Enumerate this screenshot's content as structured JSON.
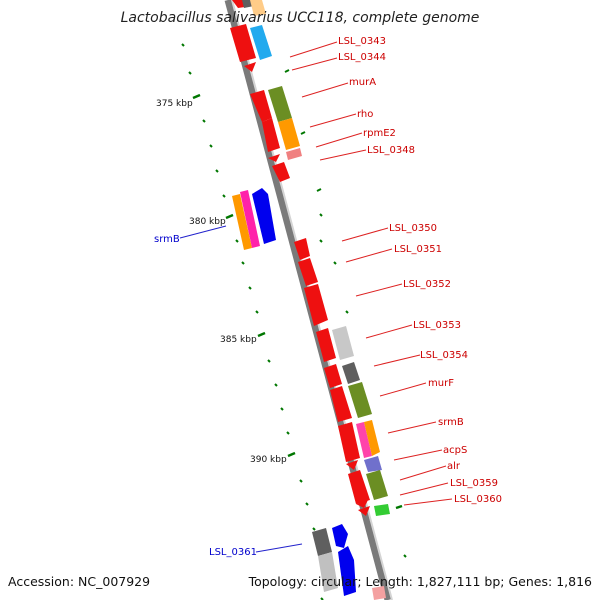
{
  "title": "Lactobacillus salivarius UCC118, complete genome",
  "footer": {
    "accession_label": "Accession:",
    "accession": "NC_007929",
    "topology_label": "Topology:",
    "topology": "circular;",
    "length_label": "Length:",
    "length": "1,827,111 bp;",
    "genes_label": "Genes:",
    "genes": "1,816"
  },
  "colors": {
    "forward_gene": "#ee0000",
    "reverse_gene": "#0000ee",
    "forward_label": "#cc0000",
    "reverse_label": "#0000cc",
    "backbone": "#808080",
    "tick": "#007700"
  },
  "scale_labels": [
    "375 kbp",
    "380 kbp",
    "385 kbp",
    "390 kbp"
  ],
  "forward_labels": [
    "LSL_0343",
    "LSL_0344",
    "murA",
    "rho",
    "rpmE2",
    "LSL_0348",
    "LSL_0350",
    "LSL_0351",
    "LSL_0352",
    "LSL_0353",
    "LSL_0354",
    "murF",
    "srmB",
    "acpS",
    "alr",
    "LSL_0359",
    "LSL_0360"
  ],
  "reverse_labels": [
    "srmB",
    "LSL_0361"
  ]
}
